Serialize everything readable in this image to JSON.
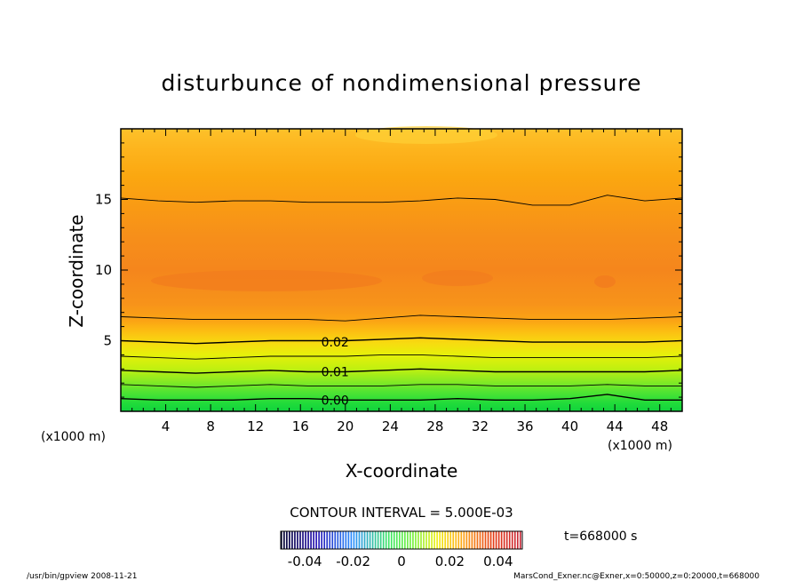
{
  "chart_data": {
    "type": "heatmap",
    "title": "disturbunce of nondimensional pressure",
    "xlabel": "X-coordinate",
    "ylabel": "Z-coordinate",
    "x_unit": "(x1000 m)",
    "y_unit": "(x1000 m)",
    "xlim": [
      0,
      50
    ],
    "ylim": [
      0,
      20
    ],
    "x_ticks": [
      4,
      8,
      12,
      16,
      20,
      24,
      28,
      32,
      36,
      40,
      44,
      48
    ],
    "y_ticks": [
      5,
      10,
      15
    ],
    "contour_interval_label": "CONTOUR INTERVAL = 5.000E-03",
    "contour_labels": [
      {
        "text": "0.02",
        "value": 0.02,
        "x": 17.5,
        "z": 4.9
      },
      {
        "text": "0.01",
        "value": 0.01,
        "x": 17.5,
        "z": 2.8
      },
      {
        "text": "0.00",
        "value": 0.0,
        "x": 17.5,
        "z": 0.8
      }
    ],
    "contour_lines": [
      {
        "value": 0.0,
        "z": [
          0.9,
          0.8,
          0.8,
          0.8,
          0.9,
          0.9,
          0.8,
          0.8,
          0.8,
          0.9,
          0.8,
          0.8,
          0.9,
          1.2,
          0.8,
          0.8
        ]
      },
      {
        "value": 0.005,
        "z": [
          1.9,
          1.8,
          1.7,
          1.8,
          1.9,
          1.8,
          1.8,
          1.8,
          1.9,
          1.9,
          1.8,
          1.8,
          1.8,
          1.9,
          1.8,
          1.8
        ]
      },
      {
        "value": 0.01,
        "z": [
          2.9,
          2.8,
          2.7,
          2.8,
          2.9,
          2.8,
          2.8,
          2.9,
          3.0,
          2.9,
          2.8,
          2.8,
          2.8,
          2.8,
          2.8,
          2.9
        ]
      },
      {
        "value": 0.015,
        "z": [
          3.9,
          3.8,
          3.7,
          3.8,
          3.9,
          3.9,
          3.9,
          4.0,
          4.0,
          3.9,
          3.8,
          3.8,
          3.8,
          3.8,
          3.8,
          3.9
        ]
      },
      {
        "value": 0.02,
        "z": [
          5.0,
          4.9,
          4.8,
          4.9,
          5.0,
          5.0,
          5.0,
          5.1,
          5.2,
          5.1,
          5.0,
          4.9,
          4.9,
          4.9,
          4.9,
          5.0
        ]
      },
      {
        "value": 0.025,
        "z": [
          6.7,
          6.6,
          6.5,
          6.5,
          6.5,
          6.5,
          6.4,
          6.6,
          6.8,
          6.7,
          6.6,
          6.5,
          6.5,
          6.5,
          6.6,
          6.7
        ]
      },
      {
        "value": 0.025,
        "z": [
          15.1,
          14.9,
          14.8,
          14.9,
          14.9,
          14.8,
          14.8,
          14.8,
          14.9,
          15.1,
          15.0,
          14.6,
          14.6,
          15.3,
          14.9,
          15.1
        ]
      }
    ],
    "colorbar": {
      "ticks": [
        "-0.04",
        "-0.02",
        "0",
        "0.02",
        "0.04"
      ],
      "tick_values": [
        -0.04,
        -0.02,
        0,
        0.02,
        0.04
      ],
      "range": [
        -0.05,
        0.05
      ]
    },
    "time_label": "t=668000 s",
    "footer_left": "/usr/bin/gpview   2008-11-21",
    "footer_right": "MarsCond_Exner.nc@Exner,x=0:50000,z=0:20000,t=668000"
  }
}
